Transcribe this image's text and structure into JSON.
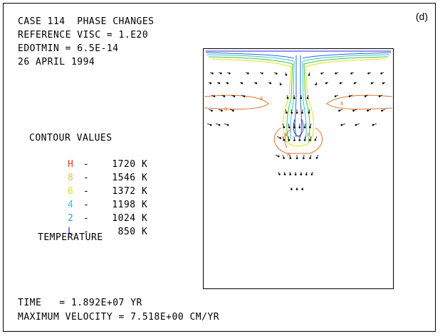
{
  "header": {
    "case": "CASE 114  PHASE CHANGES",
    "visc": "REFERENCE VISC = 1.E20",
    "edot": "EDOTMIN = 6.5E-14",
    "date": "26 APRIL 1994"
  },
  "panel_label": "(d)",
  "legend": {
    "title": "CONTOUR VALUES",
    "entries": [
      {
        "sym": "H",
        "dash": "-",
        "value": "1720 K",
        "color": "#e23b1a"
      },
      {
        "sym": "8",
        "dash": "-",
        "value": "1546 K",
        "color": "#f3b94a"
      },
      {
        "sym": "6",
        "dash": "-",
        "value": "1372 K",
        "color": "#d6e21c"
      },
      {
        "sym": "4",
        "dash": "-",
        "value": "1198 K",
        "color": "#2ec9c9"
      },
      {
        "sym": "2",
        "dash": "-",
        "value": "1024 K",
        "color": "#2a9be0"
      },
      {
        "sym": "L",
        "dash": "-",
        "value": "850 K",
        "color": "#2a2ad6"
      }
    ],
    "quantity": "TEMPERATURE"
  },
  "footer": {
    "time": "TIME   = 1.892E+07 YR",
    "velocity": "MAXIMUM VELOCITY = 7.518E+00 CM/YR"
  },
  "colors": {
    "orange": "#e0732a",
    "yellow": "#e6e01a",
    "green": "#3cc83c",
    "cyan": "#2ec9c9",
    "blue": "#2a6ae0",
    "arrow": "#000000"
  }
}
